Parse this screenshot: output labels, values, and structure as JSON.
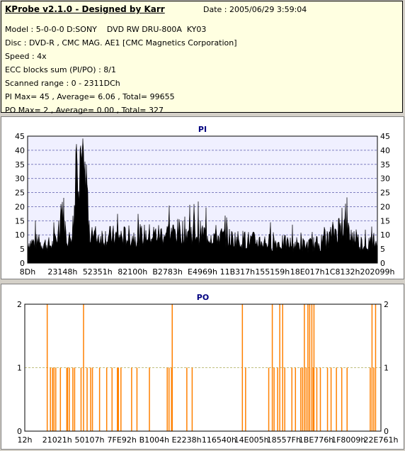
{
  "header": {
    "title": "KProbe v2.1.0 - Designed by Karr",
    "date": "Date : 2005/06/29 3:59:04",
    "lines": [
      "Model : 5-0-0-0 D:SONY    DVD RW DRU-800A  KY03",
      "Disc : DVD-R , CMC MAG. AE1 [CMC Magnetics Corporation]",
      "Speed : 4x",
      "ECC blocks sum (PI/PO) : 8/1",
      "Scanned range : 0 - 2311DCh",
      "PI Max= 45 , Average= 6.06 , Total= 99655",
      "PO Max= 2 , Average= 0.00 , Total= 327"
    ]
  },
  "chart_data": [
    {
      "type": "area",
      "title": "PI",
      "ylim": [
        0,
        45
      ],
      "yticks": [
        0,
        5,
        10,
        15,
        20,
        25,
        30,
        35,
        40,
        45
      ],
      "xtick_labels": [
        "8Dh",
        "23148h",
        "52351h",
        "82100h",
        "B2783h",
        "E4969h",
        "11B317h",
        "155159h",
        "18E017h",
        "1C8132h",
        "202099h"
      ],
      "profile": [
        [
          0,
          7
        ],
        [
          0.03,
          7
        ],
        [
          0.07,
          6
        ],
        [
          0.09,
          10
        ],
        [
          0.1,
          20
        ],
        [
          0.11,
          9
        ],
        [
          0.12,
          8
        ],
        [
          0.13,
          13
        ],
        [
          0.14,
          26
        ],
        [
          0.145,
          40
        ],
        [
          0.15,
          30
        ],
        [
          0.155,
          36
        ],
        [
          0.16,
          22
        ],
        [
          0.17,
          28
        ],
        [
          0.175,
          10
        ],
        [
          0.2,
          9
        ],
        [
          0.3,
          9
        ],
        [
          0.4,
          10
        ],
        [
          0.45,
          11
        ],
        [
          0.5,
          10
        ],
        [
          0.6,
          8
        ],
        [
          0.7,
          7
        ],
        [
          0.8,
          6
        ],
        [
          0.85,
          7
        ],
        [
          0.88,
          11
        ],
        [
          0.9,
          13
        ],
        [
          0.92,
          10
        ],
        [
          0.95,
          7
        ],
        [
          1.0,
          6
        ]
      ],
      "color": "#000000",
      "grid_color": "#8080c0",
      "plot_bg": "#f0f0ff"
    },
    {
      "type": "bar",
      "title": "PO",
      "ylim": [
        0,
        2
      ],
      "yticks": [
        0,
        1,
        2
      ],
      "xtick_labels": [
        "12h",
        "21021h",
        "50107h",
        "7FE92h",
        "B1004h",
        "E2238h",
        "116540h",
        "14E005h",
        "18557Fh",
        "1BE776h",
        "1F8009h",
        "22E761h"
      ],
      "spikes_at_2": [
        0.063,
        0.165,
        0.414,
        0.611,
        0.695,
        0.716,
        0.724,
        0.785,
        0.795,
        0.8,
        0.806,
        0.812,
        0.975,
        0.985
      ],
      "spikes_at_1": [
        0.072,
        0.078,
        0.082,
        0.087,
        0.1,
        0.118,
        0.12,
        0.125,
        0.135,
        0.14,
        0.158,
        0.175,
        0.185,
        0.19,
        0.21,
        0.23,
        0.245,
        0.26,
        0.263,
        0.27,
        0.3,
        0.315,
        0.35,
        0.4,
        0.405,
        0.412,
        0.455,
        0.47,
        0.62,
        0.685,
        0.7,
        0.71,
        0.73,
        0.75,
        0.76,
        0.775,
        0.78,
        0.79,
        0.8,
        0.81,
        0.82,
        0.83,
        0.85,
        0.86,
        0.875,
        0.89,
        0.905,
        0.97,
        0.98
      ],
      "color": "#ff8000",
      "grid_color": "#c0c080",
      "plot_bg": "#ffffff"
    }
  ]
}
